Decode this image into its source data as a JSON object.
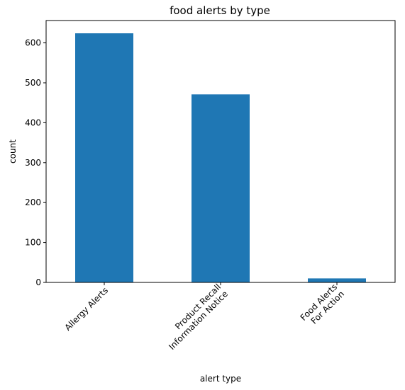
{
  "chart_data": {
    "type": "bar",
    "title": "food alerts by type",
    "xlabel": "alert type",
    "ylabel": "count",
    "categories": [
      [
        "Allergy Alerts"
      ],
      [
        "Product Recall",
        "Information Notice"
      ],
      [
        "Food Alerts",
        "For Action"
      ]
    ],
    "values": [
      624,
      471,
      10
    ],
    "ylim": [
      0,
      656
    ],
    "yticks": [
      0,
      100,
      200,
      300,
      400,
      500,
      600
    ],
    "bar_color": "#1f77b4",
    "grid": false,
    "legend": false,
    "xtick_rotation_deg": 45
  }
}
